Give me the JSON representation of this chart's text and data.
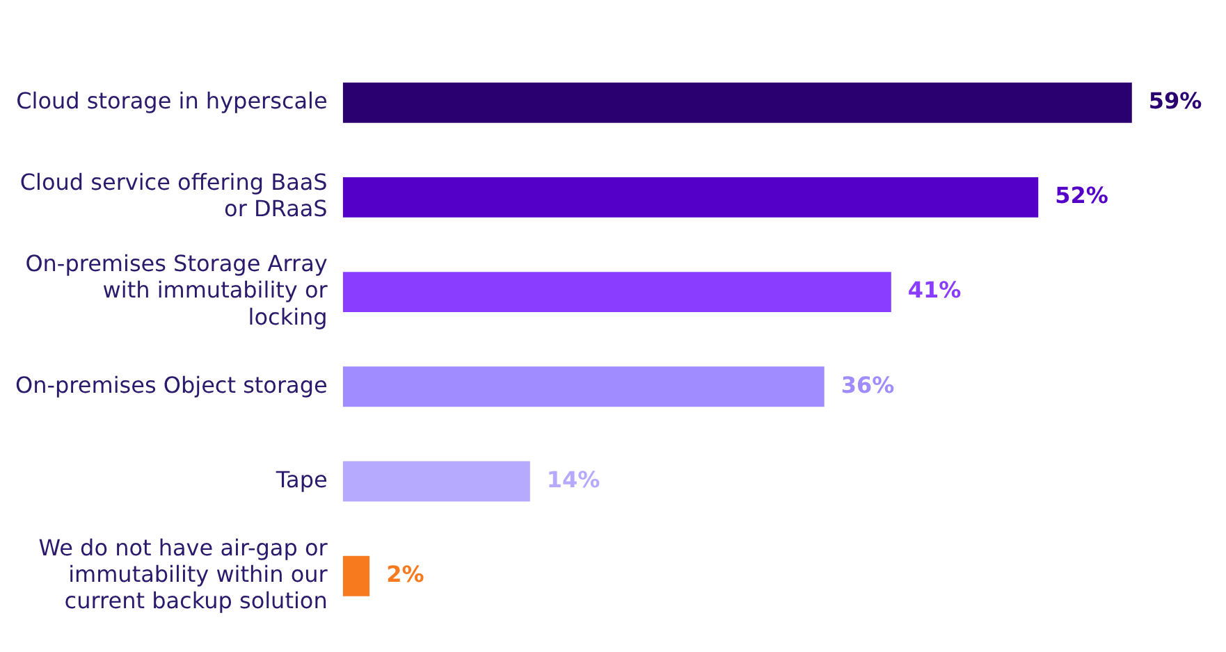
{
  "chart_data": {
    "type": "bar",
    "orientation": "horizontal",
    "categories": [
      "Cloud storage in hyperscale",
      "Cloud service offering BaaS or DRaaS",
      "On-premises Storage Array with immutability or locking",
      "On-premises Object storage",
      "Tape",
      "We do not have air-gap or immutability within our current backup solution"
    ],
    "values": [
      59,
      52,
      41,
      36,
      14,
      2
    ],
    "colors": [
      "#2a0070",
      "#5500c8",
      "#8a3cff",
      "#a08cff",
      "#b6aaff",
      "#f77b1e"
    ],
    "value_labels": [
      "59%",
      "52%",
      "41%",
      "36%",
      "14%",
      "2%"
    ],
    "grid": false,
    "legend": false,
    "tick_labels": "y"
  }
}
